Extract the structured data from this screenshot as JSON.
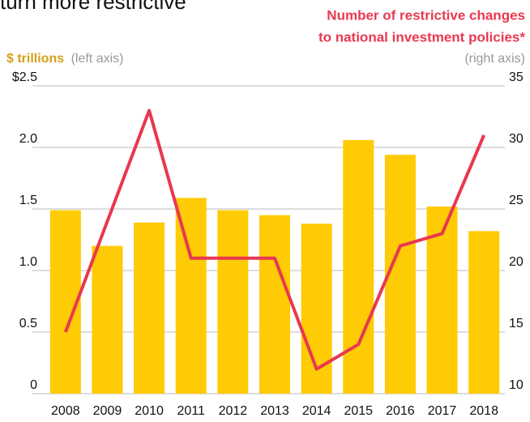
{
  "chart_data": {
    "type": "bar_line",
    "title": "turn more restrictive",
    "y_label": "$ trillions",
    "y_label_note": "(left axis)",
    "y2_label": [
      "Number of restrictive changes",
      "to national investment policies*"
    ],
    "y2_label_note": "(right axis)",
    "categories": [
      "2008",
      "2009",
      "2010",
      "2011",
      "2012",
      "2013",
      "2014",
      "2015",
      "2016",
      "2017",
      "2018"
    ],
    "series": [
      {
        "type": "bar",
        "color": "#FFCB05",
        "values": [
          1.49,
          1.2,
          1.39,
          1.59,
          1.49,
          1.45,
          1.38,
          2.06,
          1.94,
          1.52,
          1.32
        ]
      },
      {
        "type": "line",
        "axis": "y2",
        "color": "#E8384F",
        "values": [
          15,
          24,
          33,
          21,
          21,
          21,
          12,
          14,
          22,
          23,
          31
        ]
      }
    ],
    "ylim": [
      0,
      2.5
    ],
    "yticks": [
      0,
      {
        "value": 0.5,
        "label": "0.5"
      },
      {
        "value": 1,
        "label": "1.0"
      },
      {
        "value": 1.5,
        "label": "1.5"
      },
      {
        "value": 2,
        "label": "2.0"
      },
      {
        "value": 2.5,
        "label": "$2.5"
      }
    ],
    "y2lim": [
      10,
      35
    ],
    "y2ticks": [
      10,
      15,
      20,
      25,
      30,
      35
    ],
    "grid": true
  }
}
